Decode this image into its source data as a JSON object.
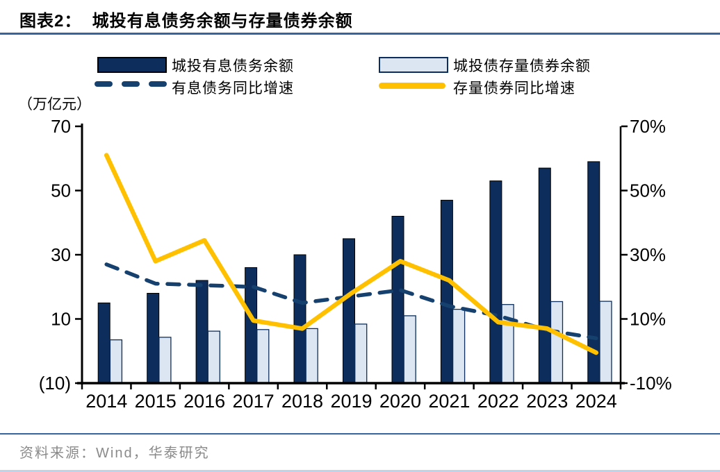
{
  "header": {
    "title": "图表2：  城投有息债务余额与存量债券余额"
  },
  "footer": {
    "source": "资料来源：Wind，华泰研究"
  },
  "legend": {
    "items": [
      {
        "label": "城投有息债务余额",
        "swatch": "bar-dark"
      },
      {
        "label": "城投债存量债券余额",
        "swatch": "bar-light"
      },
      {
        "label": "有息债务同比增速",
        "swatch": "line-dashed"
      },
      {
        "label": "存量债券同比增速",
        "swatch": "line-solid"
      }
    ]
  },
  "colors": {
    "bar_dark": "#0d2e5c",
    "bar_light": "#dce6f2",
    "bar_light_border": "#0d2e5c",
    "line_dashed": "#16406e",
    "line_solid": "#ffc000",
    "rule_blue": "#35649f",
    "source_gray": "#8a8a8a"
  },
  "chart_data": {
    "type": "combo-bar-line",
    "title": "城投有息债务余额与存量债券余额",
    "unit_label": "（万亿元）",
    "categories": [
      "2014",
      "2015",
      "2016",
      "2017",
      "2018",
      "2019",
      "2020",
      "2021",
      "2022",
      "2023",
      "2024"
    ],
    "series": [
      {
        "name": "城投有息债务余额",
        "type": "bar",
        "axis": "left",
        "color": "#0d2e5c",
        "values": [
          15,
          18,
          22,
          26,
          30,
          35,
          42,
          47,
          53,
          57,
          59
        ]
      },
      {
        "name": "城投债存量债券余额",
        "type": "bar",
        "axis": "left",
        "color": "#dce6f2",
        "values": [
          3.5,
          4.3,
          6.2,
          6.7,
          7,
          8.4,
          11,
          13,
          14.5,
          15.4,
          15.5
        ]
      },
      {
        "name": "有息债务同比增速",
        "type": "line",
        "style": "dashed",
        "axis": "right",
        "color": "#16406e",
        "values": [
          27,
          21,
          20.5,
          20,
          15,
          17,
          19,
          14,
          11,
          6.5,
          4
        ]
      },
      {
        "name": "存量债券同比增速",
        "type": "line",
        "style": "solid",
        "axis": "right",
        "color": "#ffc000",
        "values": [
          61,
          28,
          34.5,
          9.5,
          7,
          18,
          28,
          22,
          9,
          7,
          -0.5
        ]
      }
    ],
    "left_axis": {
      "min": -10,
      "max": 70,
      "tick_values": [
        70,
        50,
        30,
        10,
        -10
      ],
      "tick_labels": [
        "70",
        "50",
        "30",
        "10",
        "(10)"
      ]
    },
    "right_axis": {
      "min": -10,
      "max": 70,
      "tick_values": [
        70,
        50,
        30,
        10,
        -10
      ],
      "tick_labels": [
        "70%",
        "50%",
        "30%",
        "10%",
        "-10%"
      ]
    },
    "bars_start_at_axis_min": true,
    "grid": false,
    "legend_position": "top"
  }
}
